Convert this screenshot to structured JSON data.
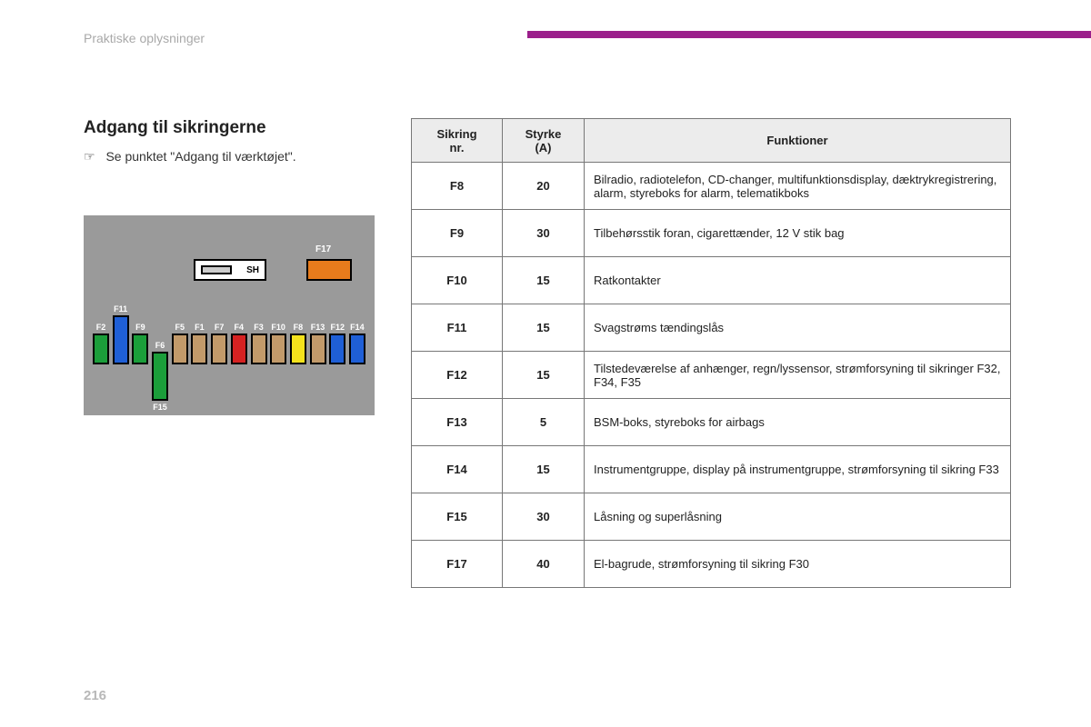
{
  "section_label": "Praktiske oplysninger",
  "title": "Adgang til sikringerne",
  "note_icon": "☞",
  "note_text": "Se punktet \"Adgang til værktøjet\".",
  "page_number": "216",
  "accent_color": "#9b1f8b",
  "diagram": {
    "bg": "#9a9a9a",
    "sh_label": "SH",
    "f17_label": "F17",
    "f17_color": "#e77b1c",
    "fuses": [
      {
        "label": "F2",
        "color": "#1b9e3a",
        "variant": "normal"
      },
      {
        "label": "F11",
        "color": "#1f5fd6",
        "variant": "tall-up",
        "label2_top": "F11"
      },
      {
        "label": "F9",
        "color": "#1b9e3a",
        "variant": "normal"
      },
      {
        "labelTop": "F15",
        "labelBottom": "F15",
        "color": "#1b9e3a",
        "variant": "tall-down",
        "label": "F6"
      },
      {
        "label": "F5",
        "color": "#c29a6a",
        "variant": "normal"
      },
      {
        "label": "F1",
        "color": "#c29a6a",
        "variant": "normal"
      },
      {
        "label": "F7",
        "color": "#c29a6a",
        "variant": "normal"
      },
      {
        "label": "F4",
        "color": "#d62222",
        "variant": "normal"
      },
      {
        "label": "F3",
        "color": "#c29a6a",
        "variant": "normal"
      },
      {
        "label": "F10",
        "color": "#c29a6a",
        "variant": "normal"
      },
      {
        "label": "F8",
        "color": "#f4e21c",
        "variant": "normal"
      },
      {
        "label": "F13",
        "color": "#c29a6a",
        "variant": "normal"
      },
      {
        "label": "F12",
        "color": "#1f5fd6",
        "variant": "normal"
      },
      {
        "label": "F14",
        "color": "#1f5fd6",
        "variant": "normal"
      }
    ]
  },
  "table": {
    "headers": {
      "fuse": "Sikring\nnr.",
      "amp": "Styrke\n(A)",
      "func": "Funktioner"
    },
    "rows": [
      {
        "fuse": "F8",
        "amp": "20",
        "func": "Bilradio, radiotelefon, CD-changer, multifunktionsdisplay, dæktrykregistrering, alarm, styreboks for alarm, telematikboks"
      },
      {
        "fuse": "F9",
        "amp": "30",
        "func": "Tilbehørsstik foran, cigarettænder, 12 V stik bag"
      },
      {
        "fuse": "F10",
        "amp": "15",
        "func": "Ratkontakter"
      },
      {
        "fuse": "F11",
        "amp": "15",
        "func": "Svagstrøms tændingslås"
      },
      {
        "fuse": "F12",
        "amp": "15",
        "func": "Tilstedeværelse af anhænger, regn/lyssensor, strømforsyning til sikringer F32, F34, F35"
      },
      {
        "fuse": "F13",
        "amp": "5",
        "func": "BSM-boks, styreboks for airbags"
      },
      {
        "fuse": "F14",
        "amp": "15",
        "func": "Instrumentgruppe, display på instrumentgruppe, strømforsyning til sikring F33"
      },
      {
        "fuse": "F15",
        "amp": "30",
        "func": "Låsning og superlåsning"
      },
      {
        "fuse": "F17",
        "amp": "40",
        "func": "El-bagrude, strømforsyning til sikring F30"
      }
    ]
  }
}
